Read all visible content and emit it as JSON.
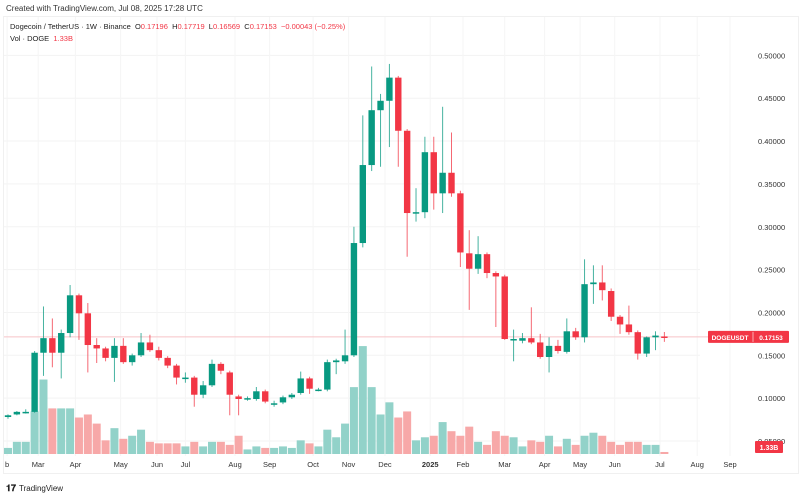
{
  "header": {
    "created": "Created with TradingView.com, Jul 08, 2025 17:28 UTC",
    "symbol_desc": "Dogecoin / TetherUS · 1W · Binance",
    "o_label": "O",
    "o": "0.17196",
    "h_label": "H",
    "h": "0.17719",
    "l_label": "L",
    "l": "0.16569",
    "c_label": "C",
    "c": "0.17153",
    "change": "−0.00043 (−0.25%)",
    "vol_label": "Vol · DOGE",
    "vol": "1.33B"
  },
  "footer": {
    "logo_text": "TradingView"
  },
  "colors": {
    "up": "#089981",
    "down": "#f23645",
    "vol_up": "#92d2c9",
    "vol_down": "#f7a8a8",
    "last_price_line": "#f7c3c8"
  },
  "chart_data": {
    "type": "candlestick",
    "title": "",
    "interval": "1W",
    "ylim": [
      0.05,
      0.52
    ],
    "y_ticks": [
      "0.50000",
      "0.45000",
      "0.40000",
      "0.35000",
      "0.30000",
      "0.25000",
      "0.20000",
      "0.15000",
      "0.10000",
      "0.05000"
    ],
    "x_ticks": [
      "Feb",
      "Mar",
      "Apr",
      "May",
      "Jun",
      "Jul",
      "Aug",
      "Sep",
      "Oct",
      "Nov",
      "Dec",
      "2025",
      "Feb",
      "Mar",
      "Apr",
      "May",
      "Jun",
      "Jul",
      "Aug",
      "Sep"
    ],
    "grid": true,
    "last_price_label": {
      "symbol": "DOGEUSDT",
      "price": "0.17153"
    },
    "volume_label": "1.33B",
    "candles": [
      [
        0.078,
        0.081,
        0.076,
        0.08
      ],
      [
        0.081,
        0.085,
        0.08,
        0.084
      ],
      [
        0.084,
        0.087,
        0.082,
        0.084
      ],
      [
        0.084,
        0.155,
        0.083,
        0.153
      ],
      [
        0.153,
        0.207,
        0.126,
        0.17
      ],
      [
        0.17,
        0.193,
        0.136,
        0.153
      ],
      [
        0.153,
        0.18,
        0.123,
        0.176
      ],
      [
        0.176,
        0.232,
        0.171,
        0.22
      ],
      [
        0.22,
        0.222,
        0.168,
        0.199
      ],
      [
        0.199,
        0.211,
        0.13,
        0.162
      ],
      [
        0.162,
        0.17,
        0.141,
        0.158
      ],
      [
        0.158,
        0.16,
        0.143,
        0.147
      ],
      [
        0.147,
        0.17,
        0.119,
        0.161
      ],
      [
        0.161,
        0.17,
        0.14,
        0.142
      ],
      [
        0.142,
        0.152,
        0.138,
        0.15
      ],
      [
        0.15,
        0.176,
        0.148,
        0.165
      ],
      [
        0.165,
        0.174,
        0.154,
        0.156
      ],
      [
        0.156,
        0.16,
        0.144,
        0.147
      ],
      [
        0.147,
        0.149,
        0.135,
        0.138
      ],
      [
        0.138,
        0.14,
        0.116,
        0.124
      ],
      [
        0.124,
        0.13,
        0.118,
        0.124
      ],
      [
        0.124,
        0.126,
        0.09,
        0.104
      ],
      [
        0.104,
        0.12,
        0.1,
        0.115
      ],
      [
        0.115,
        0.145,
        0.113,
        0.14
      ],
      [
        0.14,
        0.142,
        0.128,
        0.132
      ],
      [
        0.13,
        0.132,
        0.08,
        0.104
      ],
      [
        0.102,
        0.104,
        0.08,
        0.099
      ],
      [
        0.1,
        0.102,
        0.097,
        0.1
      ],
      [
        0.099,
        0.113,
        0.097,
        0.108
      ],
      [
        0.108,
        0.11,
        0.094,
        0.096
      ],
      [
        0.094,
        0.097,
        0.09,
        0.094
      ],
      [
        0.095,
        0.103,
        0.093,
        0.101
      ],
      [
        0.101,
        0.106,
        0.099,
        0.104
      ],
      [
        0.106,
        0.131,
        0.104,
        0.123
      ],
      [
        0.123,
        0.125,
        0.105,
        0.111
      ],
      [
        0.11,
        0.112,
        0.108,
        0.11
      ],
      [
        0.11,
        0.145,
        0.108,
        0.142
      ],
      [
        0.142,
        0.146,
        0.128,
        0.144
      ],
      [
        0.143,
        0.18,
        0.14,
        0.15
      ],
      [
        0.15,
        0.3,
        0.148,
        0.281
      ],
      [
        0.281,
        0.43,
        0.276,
        0.372
      ],
      [
        0.372,
        0.487,
        0.365,
        0.436
      ],
      [
        0.436,
        0.455,
        0.37,
        0.447
      ],
      [
        0.447,
        0.49,
        0.393,
        0.474
      ],
      [
        0.474,
        0.476,
        0.37,
        0.412
      ],
      [
        0.412,
        0.414,
        0.265,
        0.316
      ],
      [
        0.317,
        0.345,
        0.306,
        0.317
      ],
      [
        0.317,
        0.405,
        0.31,
        0.387
      ],
      [
        0.387,
        0.405,
        0.32,
        0.339
      ],
      [
        0.339,
        0.44,
        0.316,
        0.363
      ],
      [
        0.363,
        0.41,
        0.335,
        0.339
      ],
      [
        0.339,
        0.342,
        0.253,
        0.27
      ],
      [
        0.269,
        0.296,
        0.203,
        0.251
      ],
      [
        0.251,
        0.289,
        0.245,
        0.268
      ],
      [
        0.268,
        0.27,
        0.24,
        0.246
      ],
      [
        0.246,
        0.248,
        0.183,
        0.242
      ],
      [
        0.242,
        0.244,
        0.168,
        0.169
      ],
      [
        0.169,
        0.18,
        0.143,
        0.169
      ],
      [
        0.167,
        0.176,
        0.164,
        0.17
      ],
      [
        0.17,
        0.206,
        0.163,
        0.165
      ],
      [
        0.165,
        0.175,
        0.146,
        0.148
      ],
      [
        0.148,
        0.171,
        0.13,
        0.161
      ],
      [
        0.161,
        0.168,
        0.152,
        0.155
      ],
      [
        0.154,
        0.193,
        0.152,
        0.178
      ],
      [
        0.178,
        0.182,
        0.168,
        0.171
      ],
      [
        0.171,
        0.262,
        0.165,
        0.233
      ],
      [
        0.233,
        0.255,
        0.21,
        0.235
      ],
      [
        0.235,
        0.255,
        0.214,
        0.226
      ],
      [
        0.225,
        0.228,
        0.19,
        0.195
      ],
      [
        0.195,
        0.197,
        0.175,
        0.186
      ],
      [
        0.186,
        0.208,
        0.174,
        0.177
      ],
      [
        0.177,
        0.179,
        0.145,
        0.152
      ],
      [
        0.152,
        0.172,
        0.148,
        0.171
      ],
      [
        0.171,
        0.178,
        0.156,
        0.173
      ],
      [
        0.17196,
        0.17719,
        0.16569,
        0.17153
      ]
    ],
    "volume_billions": [
      4,
      8,
      8,
      28,
      49,
      30,
      30,
      30,
      24,
      26,
      20,
      9,
      17,
      10,
      12,
      16,
      8,
      7,
      7,
      7,
      5,
      8,
      5,
      8,
      8,
      6,
      12,
      3,
      5,
      4,
      4,
      5,
      4,
      9,
      7,
      5,
      16,
      11,
      20,
      44,
      71,
      44,
      26,
      34,
      24,
      28,
      9,
      11,
      12,
      21,
      15,
      12,
      18,
      8,
      6,
      15,
      12,
      11,
      5,
      9,
      8,
      12,
      5,
      10,
      6,
      12,
      14,
      12,
      8,
      6,
      8,
      8,
      6,
      6,
      1.33
    ]
  }
}
